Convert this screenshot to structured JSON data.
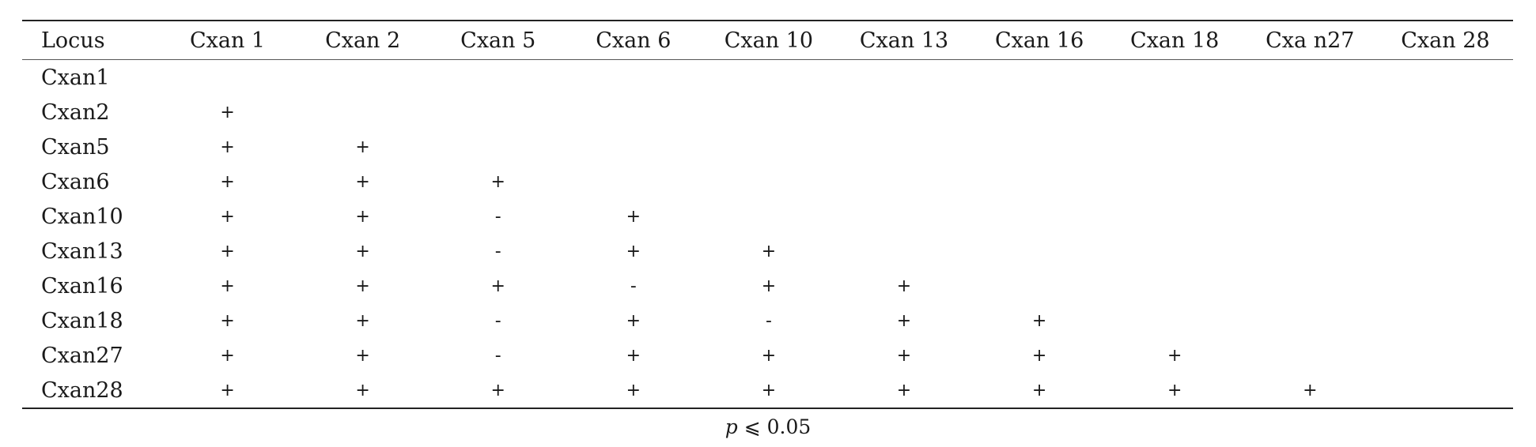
{
  "table": {
    "headers": [
      "Locus",
      "Cxan 1",
      "Cxan 2",
      "Cxan 5",
      "Cxan 6",
      "Cxan 10",
      "Cxan 13",
      "Cxan 16",
      "Cxan 18",
      "Cxa n27",
      "Cxan 28"
    ],
    "rows": [
      {
        "locus": "Cxan1",
        "cells": [
          "",
          "",
          "",
          "",
          "",
          "",
          "",
          "",
          "",
          ""
        ]
      },
      {
        "locus": "Cxan2",
        "cells": [
          "+",
          "",
          "",
          "",
          "",
          "",
          "",
          "",
          "",
          ""
        ]
      },
      {
        "locus": "Cxan5",
        "cells": [
          "+",
          "+",
          "",
          "",
          "",
          "",
          "",
          "",
          "",
          ""
        ]
      },
      {
        "locus": "Cxan6",
        "cells": [
          "+",
          "+",
          "+",
          "",
          "",
          "",
          "",
          "",
          "",
          ""
        ]
      },
      {
        "locus": "Cxan10",
        "cells": [
          "+",
          "+",
          "-",
          "+",
          "",
          "",
          "",
          "",
          "",
          ""
        ]
      },
      {
        "locus": "Cxan13",
        "cells": [
          "+",
          "+",
          "-",
          "+",
          "+",
          "",
          "",
          "",
          "",
          ""
        ]
      },
      {
        "locus": "Cxan16",
        "cells": [
          "+",
          "+",
          "+",
          "-",
          "+",
          "+",
          "",
          "",
          "",
          ""
        ]
      },
      {
        "locus": "Cxan18",
        "cells": [
          "+",
          "+",
          "-",
          "+",
          "-",
          "+",
          "+",
          "",
          "",
          ""
        ]
      },
      {
        "locus": "Cxan27",
        "cells": [
          "+",
          "+",
          "-",
          "+",
          "+",
          "+",
          "+",
          "+",
          "",
          ""
        ]
      },
      {
        "locus": "Cxan28",
        "cells": [
          "+",
          "+",
          "+",
          "+",
          "+",
          "+",
          "+",
          "+",
          "+",
          ""
        ]
      }
    ]
  },
  "footnote": {
    "variable": "p",
    "condition": " ⩽ 0.05"
  }
}
